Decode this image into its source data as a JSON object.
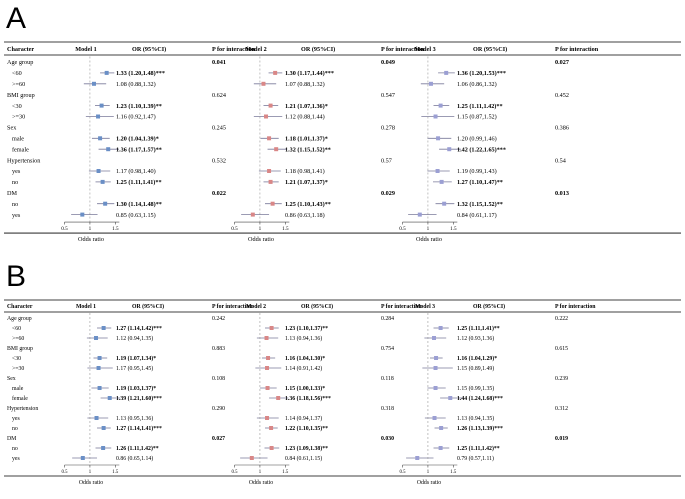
{
  "chart_data": [
    {
      "type": "forest",
      "panel": "A",
      "headers": {
        "character": "Character",
        "model_1": "Model 1",
        "model_2": "Model 2",
        "model_3": "Model 3",
        "or": "OR (95%CI)",
        "p": "P for interaction"
      },
      "axis": {
        "ticks": [
          0.5,
          1,
          1.5
        ],
        "tick_labels": [
          "0.5",
          "1",
          "1.5"
        ],
        "xlabel": "Odds ratio",
        "xlim": [
          0.45,
          1.75
        ],
        "ref_line": 1
      },
      "groups": [
        {
          "name": "Age group",
          "p": [
            "0.041",
            "0.049",
            "0.027"
          ],
          "p_bold": [
            true,
            true,
            true
          ],
          "rows": [
            {
              "label": "<60",
              "or": [
                1.33,
                1.3,
                1.36
              ],
              "lo": [
                1.2,
                1.17,
                1.2
              ],
              "hi": [
                1.48,
                1.44,
                1.53
              ],
              "text": [
                "1.33 (1.20,1.48)***",
                "1.30 (1.17,1.44)***",
                "1.36 (1.20,1.53)***"
              ],
              "bold": [
                true,
                true,
                true
              ]
            },
            {
              "label": ">=60",
              "or": [
                1.08,
                1.07,
                1.06
              ],
              "lo": [
                0.88,
                0.88,
                0.86
              ],
              "hi": [
                1.32,
                1.32,
                1.32
              ],
              "text": [
                "1.08 (0.88,1.32)",
                "1.07 (0.88,1.32)",
                "1.06 (0.86,1.32)"
              ],
              "bold": [
                false,
                false,
                false
              ]
            }
          ]
        },
        {
          "name": "BMI group",
          "p": [
            "0.624",
            "0.547",
            "0.452"
          ],
          "p_bold": [
            false,
            false,
            false
          ],
          "rows": [
            {
              "label": "<30",
              "or": [
                1.23,
                1.21,
                1.25
              ],
              "lo": [
                1.1,
                1.07,
                1.11
              ],
              "hi": [
                1.39,
                1.36,
                1.42
              ],
              "text": [
                "1.23 (1.10,1.39)**",
                "1.21 (1.07,1.36)*",
                "1.25 (1.11,1.42)**"
              ],
              "bold": [
                true,
                true,
                true
              ]
            },
            {
              "label": ">=30",
              "or": [
                1.16,
                1.12,
                1.15
              ],
              "lo": [
                0.92,
                0.88,
                0.87
              ],
              "hi": [
                1.47,
                1.44,
                1.52
              ],
              "text": [
                "1.16 (0.92,1.47)",
                "1.12 (0.88,1.44)",
                "1.15 (0.87,1.52)"
              ],
              "bold": [
                false,
                false,
                false
              ]
            }
          ]
        },
        {
          "name": "Sex",
          "p": [
            "0.245",
            "0.278",
            "0.386"
          ],
          "p_bold": [
            false,
            false,
            false
          ],
          "rows": [
            {
              "label": "male",
              "or": [
                1.2,
                1.18,
                1.2
              ],
              "lo": [
                1.04,
                1.01,
                0.99
              ],
              "hi": [
                1.39,
                1.37,
                1.46
              ],
              "text": [
                "1.20 (1.04,1.39)*",
                "1.18 (1.01,1.37)*",
                "1.20 (0.99,1.46)"
              ],
              "bold": [
                true,
                true,
                false
              ]
            },
            {
              "label": "female",
              "or": [
                1.36,
                1.32,
                1.42
              ],
              "lo": [
                1.17,
                1.15,
                1.22
              ],
              "hi": [
                1.57,
                1.52,
                1.65
              ],
              "text": [
                "1.36 (1.17,1.57)**",
                "1.32 (1.15,1.52)**",
                "1.42 (1.22,1.65)***"
              ],
              "bold": [
                true,
                true,
                true
              ]
            }
          ]
        },
        {
          "name": "Hypertension",
          "p": [
            "0.532",
            "0.57",
            "0.54"
          ],
          "p_bold": [
            false,
            false,
            false
          ],
          "rows": [
            {
              "label": "yes",
              "or": [
                1.17,
                1.18,
                1.19
              ],
              "lo": [
                0.98,
                0.98,
                0.99
              ],
              "hi": [
                1.4,
                1.41,
                1.43
              ],
              "text": [
                "1.17 (0.98,1.40)",
                "1.18 (0.98,1.41)",
                "1.19 (0.99,1.43)"
              ],
              "bold": [
                false,
                false,
                false
              ]
            },
            {
              "label": "no",
              "or": [
                1.25,
                1.21,
                1.27
              ],
              "lo": [
                1.11,
                1.07,
                1.1
              ],
              "hi": [
                1.41,
                1.37,
                1.47
              ],
              "text": [
                "1.25 (1.11,1.41)**",
                "1.21 (1.07,1.37)*",
                "1.27 (1.10,1.47)**"
              ],
              "bold": [
                true,
                true,
                true
              ]
            }
          ]
        },
        {
          "name": "DM",
          "p": [
            "0.022",
            "0.029",
            "0.013"
          ],
          "p_bold": [
            true,
            true,
            true
          ],
          "rows": [
            {
              "label": "no",
              "or": [
                1.3,
                1.25,
                1.32
              ],
              "lo": [
                1.14,
                1.1,
                1.15
              ],
              "hi": [
                1.48,
                1.43,
                1.52
              ],
              "text": [
                "1.30 (1.14,1.48)**",
                "1.25 (1.10,1.43)**",
                "1.32 (1.15,1.52)**"
              ],
              "bold": [
                true,
                true,
                true
              ]
            },
            {
              "label": "yes",
              "or": [
                0.85,
                0.86,
                0.84
              ],
              "lo": [
                0.63,
                0.63,
                0.61
              ],
              "hi": [
                1.15,
                1.18,
                1.17
              ],
              "text": [
                "0.85 (0.63,1.15)",
                "0.86 (0.63,1.18)",
                "0.84 (0.61,1.17)"
              ],
              "bold": [
                false,
                false,
                false
              ]
            }
          ]
        }
      ]
    },
    {
      "type": "forest",
      "panel": "B",
      "headers": {
        "character": "Character",
        "model_1": "Model 1",
        "model_2": "Model 2",
        "model_3": "Model 3",
        "or": "OR (95%CI)",
        "p": "P for interaction"
      },
      "axis": {
        "ticks": [
          0.5,
          1,
          1.5
        ],
        "tick_labels": [
          "0.5",
          "1",
          "1.5"
        ],
        "xlabel": "Odds ratio",
        "xlim": [
          0.45,
          1.75
        ],
        "ref_line": 1
      },
      "groups": [
        {
          "name": "Age group",
          "p": [
            "0.242",
            "0.284",
            "0.222"
          ],
          "p_bold": [
            false,
            false,
            false
          ],
          "rows": [
            {
              "label": "<60",
              "or": [
                1.27,
                1.23,
                1.25
              ],
              "lo": [
                1.14,
                1.1,
                1.11
              ],
              "hi": [
                1.42,
                1.37,
                1.41
              ],
              "text": [
                "1.27 (1.14,1.42)***",
                "1.23 (1.10,1.37)**",
                "1.25 (1.11,1.41)**"
              ],
              "bold": [
                true,
                true,
                true
              ]
            },
            {
              "label": ">=60",
              "or": [
                1.12,
                1.13,
                1.12
              ],
              "lo": [
                0.94,
                0.94,
                0.93
              ],
              "hi": [
                1.35,
                1.36,
                1.36
              ],
              "text": [
                "1.12 (0.94,1.35)",
                "1.13 (0.94,1.36)",
                "1.12 (0.93,1.36)"
              ],
              "bold": [
                false,
                false,
                false
              ]
            }
          ]
        },
        {
          "name": "BMI group",
          "p": [
            "0.883",
            "0.754",
            "0.615"
          ],
          "p_bold": [
            false,
            false,
            false
          ],
          "rows": [
            {
              "label": "<30",
              "or": [
                1.19,
                1.16,
                1.16
              ],
              "lo": [
                1.07,
                1.04,
                1.04
              ],
              "hi": [
                1.34,
                1.3,
                1.29
              ],
              "text": [
                "1.19 (1.07,1.34)*",
                "1.16 (1.04,1.30)*",
                "1.16 (1.04,1.29)*"
              ],
              "bold": [
                true,
                true,
                true
              ]
            },
            {
              "label": ">=30",
              "or": [
                1.17,
                1.14,
                1.15
              ],
              "lo": [
                0.95,
                0.91,
                0.89
              ],
              "hi": [
                1.45,
                1.42,
                1.49
              ],
              "text": [
                "1.17 (0.95,1.45)",
                "1.14 (0.91,1.42)",
                "1.15 (0.89,1.49)"
              ],
              "bold": [
                false,
                false,
                false
              ]
            }
          ]
        },
        {
          "name": "Sex",
          "p": [
            "0.108",
            "0.118",
            "0.239"
          ],
          "p_bold": [
            false,
            false,
            false
          ],
          "rows": [
            {
              "label": "male",
              "or": [
                1.19,
                1.15,
                1.15
              ],
              "lo": [
                1.03,
                1.0,
                0.99
              ],
              "hi": [
                1.37,
                1.33,
                1.35
              ],
              "text": [
                "1.19 (1.03,1.37)*",
                "1.15 (1.00,1.33)*",
                "1.15 (0.99,1.35)"
              ],
              "bold": [
                true,
                true,
                false
              ]
            },
            {
              "label": "female",
              "or": [
                1.39,
                1.36,
                1.44
              ],
              "lo": [
                1.21,
                1.18,
                1.24
              ],
              "hi": [
                1.6,
                1.56,
                1.68
              ],
              "text": [
                "1.39 (1.21,1.60)***",
                "1.36 (1.18,1.56)***",
                "1.44 (1.24,1.68)***"
              ],
              "bold": [
                true,
                true,
                true
              ]
            }
          ]
        },
        {
          "name": "Hypertension",
          "p": [
            "0.290",
            "0.318",
            "0.312"
          ],
          "p_bold": [
            false,
            false,
            false
          ],
          "rows": [
            {
              "label": "yes",
              "or": [
                1.13,
                1.14,
                1.13
              ],
              "lo": [
                0.95,
                0.94,
                0.94
              ],
              "hi": [
                1.36,
                1.37,
                1.35
              ],
              "text": [
                "1.13 (0.95,1.36)",
                "1.14 (0.94,1.37)",
                "1.13 (0.94,1.35)"
              ],
              "bold": [
                false,
                false,
                false
              ]
            },
            {
              "label": "no",
              "or": [
                1.27,
                1.22,
                1.26
              ],
              "lo": [
                1.14,
                1.1,
                1.13
              ],
              "hi": [
                1.41,
                1.35,
                1.39
              ],
              "text": [
                "1.27 (1.14,1.41)***",
                "1.22 (1.10,1.35)**",
                "1.26 (1.13,1.39)***"
              ],
              "bold": [
                true,
                true,
                true
              ]
            }
          ]
        },
        {
          "name": "DM",
          "p": [
            "0.027",
            "0.030",
            "0.019"
          ],
          "p_bold": [
            true,
            true,
            true
          ],
          "rows": [
            {
              "label": "no",
              "or": [
                1.26,
                1.23,
                1.25
              ],
              "lo": [
                1.11,
                1.09,
                1.11
              ],
              "hi": [
                1.42,
                1.38,
                1.42
              ],
              "text": [
                "1.26 (1.11,1.42)**",
                "1.23 (1.09,1.38)**",
                "1.25 (1.11,1.42)**"
              ],
              "bold": [
                true,
                true,
                true
              ]
            },
            {
              "label": "yes",
              "or": [
                0.86,
                0.84,
                0.79
              ],
              "lo": [
                0.65,
                0.61,
                0.57
              ],
              "hi": [
                1.14,
                1.15,
                1.11
              ],
              "text": [
                "0.86 (0.65,1.14)",
                "0.84 (0.61,1.15)",
                "0.79 (0.57,1.11)"
              ],
              "bold": [
                false,
                false,
                false
              ]
            }
          ]
        }
      ]
    }
  ],
  "colors": {
    "model_1": "#6a8fc6",
    "model_2": "#d98787",
    "model_3": "#9b9fd3",
    "rule": "#000000",
    "ref": "#999999"
  }
}
